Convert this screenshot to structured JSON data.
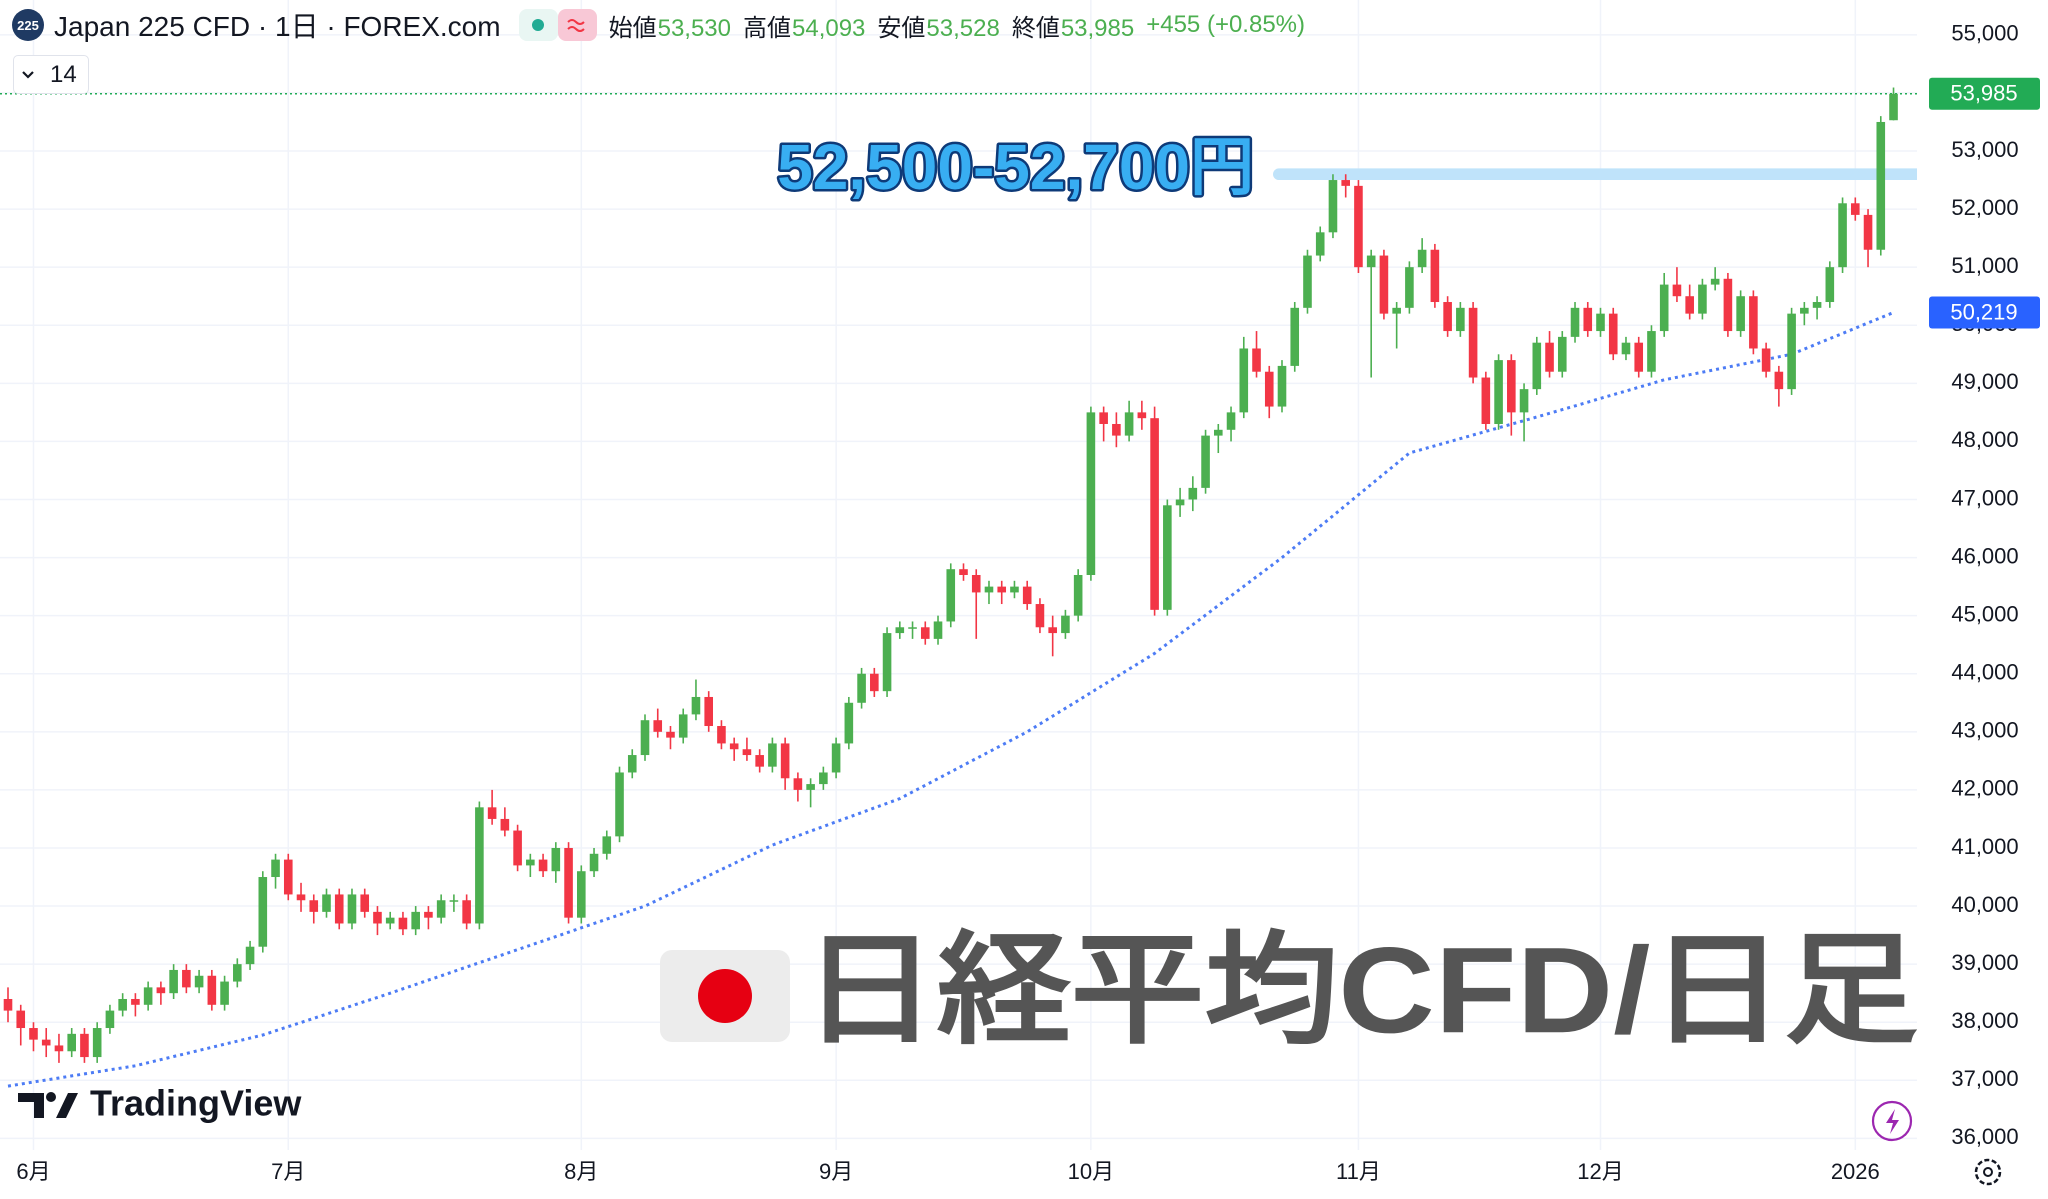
{
  "header": {
    "badge": "225",
    "title": "Japan 225 CFD · 1日 · FOREX.com",
    "ohlc": {
      "labels": [
        "始値",
        "高値",
        "安値",
        "終値"
      ],
      "values": [
        53530,
        54093,
        53528,
        53985
      ],
      "value_labels": [
        "53,530",
        "54,093",
        "53,528",
        "53,985"
      ]
    },
    "change": {
      "value": 455,
      "label": "+455"
    },
    "change_pct": {
      "value": 0.85,
      "label": "(+0.85%)"
    },
    "indicator_count": 14
  },
  "chart_data": {
    "type": "candlestick",
    "up_color": "#4caf50",
    "down_color": "#f23645",
    "grid": true,
    "ylim": [
      35800,
      55600
    ],
    "yticks": [
      {
        "value": 36000,
        "label": "36,000"
      },
      {
        "value": 37000,
        "label": "37,000"
      },
      {
        "value": 38000,
        "label": "38,000"
      },
      {
        "value": 39000,
        "label": "39,000"
      },
      {
        "value": 40000,
        "label": "40,000"
      },
      {
        "value": 41000,
        "label": "41,000"
      },
      {
        "value": 42000,
        "label": "42,000"
      },
      {
        "value": 43000,
        "label": "43,000"
      },
      {
        "value": 44000,
        "label": "44,000"
      },
      {
        "value": 45000,
        "label": "45,000"
      },
      {
        "value": 46000,
        "label": "46,000"
      },
      {
        "value": 47000,
        "label": "47,000"
      },
      {
        "value": 48000,
        "label": "48,000"
      },
      {
        "value": 49000,
        "label": "49,000"
      },
      {
        "value": 50000,
        "label": "50,000"
      },
      {
        "value": 51000,
        "label": "51,000"
      },
      {
        "value": 52000,
        "label": "52,000"
      },
      {
        "value": 53000,
        "label": "53,000"
      },
      {
        "value": 54000,
        "label": "54,000"
      },
      {
        "value": 55000,
        "label": "55,000"
      }
    ],
    "categories": [
      null,
      null,
      "6月",
      null,
      null,
      null,
      null,
      null,
      null,
      null,
      null,
      null,
      null,
      null,
      null,
      null,
      null,
      null,
      null,
      null,
      null,
      null,
      "7月",
      null,
      null,
      null,
      null,
      null,
      null,
      null,
      null,
      null,
      null,
      null,
      null,
      null,
      null,
      null,
      null,
      null,
      null,
      null,
      null,
      null,
      null,
      "8月",
      null,
      null,
      null,
      null,
      null,
      null,
      null,
      null,
      null,
      null,
      null,
      null,
      null,
      null,
      null,
      null,
      null,
      null,
      null,
      "9月",
      null,
      null,
      null,
      null,
      null,
      null,
      null,
      null,
      null,
      null,
      null,
      null,
      null,
      null,
      null,
      null,
      null,
      null,
      null,
      "10月",
      null,
      null,
      null,
      null,
      null,
      null,
      null,
      null,
      null,
      null,
      null,
      null,
      null,
      null,
      null,
      null,
      null,
      null,
      null,
      null,
      "11月",
      null,
      null,
      null,
      null,
      null,
      null,
      null,
      null,
      null,
      null,
      null,
      null,
      null,
      null,
      null,
      null,
      null,
      null,
      "12月",
      null,
      null,
      null,
      null,
      null,
      null,
      null,
      null,
      null,
      null,
      null,
      null,
      null,
      null,
      null,
      null,
      null,
      null,
      null,
      "2026",
      null,
      null,
      null,
      null,
      null
    ],
    "candles": [
      [
        38400,
        38600,
        38000,
        38200
      ],
      [
        38200,
        38300,
        37600,
        37900
      ],
      [
        37900,
        38000,
        37500,
        37700
      ],
      [
        37700,
        37900,
        37400,
        37600
      ],
      [
        37600,
        37800,
        37300,
        37500
      ],
      [
        37500,
        37900,
        37400,
        37800
      ],
      [
        37800,
        37900,
        37300,
        37400
      ],
      [
        37400,
        38000,
        37300,
        37900
      ],
      [
        37900,
        38300,
        37800,
        38200
      ],
      [
        38200,
        38500,
        38100,
        38400
      ],
      [
        38400,
        38500,
        38100,
        38300
      ],
      [
        38300,
        38700,
        38200,
        38600
      ],
      [
        38600,
        38700,
        38300,
        38500
      ],
      [
        38500,
        39000,
        38400,
        38900
      ],
      [
        38900,
        39000,
        38500,
        38600
      ],
      [
        38600,
        38900,
        38500,
        38800
      ],
      [
        38800,
        38900,
        38200,
        38300
      ],
      [
        38300,
        38800,
        38200,
        38700
      ],
      [
        38700,
        39100,
        38600,
        39000
      ],
      [
        39000,
        39400,
        38900,
        39300
      ],
      [
        39300,
        40600,
        39200,
        40500
      ],
      [
        40500,
        40900,
        40300,
        40800
      ],
      [
        40800,
        40900,
        40100,
        40200
      ],
      [
        40200,
        40400,
        39900,
        40100
      ],
      [
        40100,
        40200,
        39700,
        39900
      ],
      [
        39900,
        40300,
        39800,
        40200
      ],
      [
        40200,
        40300,
        39600,
        39700
      ],
      [
        39700,
        40300,
        39600,
        40200
      ],
      [
        40200,
        40300,
        39800,
        39900
      ],
      [
        39900,
        40000,
        39500,
        39700
      ],
      [
        39700,
        39900,
        39600,
        39800
      ],
      [
        39800,
        39900,
        39500,
        39600
      ],
      [
        39600,
        40000,
        39500,
        39900
      ],
      [
        39900,
        40000,
        39600,
        39800
      ],
      [
        39800,
        40200,
        39700,
        40100
      ],
      [
        40100,
        40200,
        39900,
        40100
      ],
      [
        40100,
        40200,
        39600,
        39700
      ],
      [
        39700,
        41800,
        39600,
        41700
      ],
      [
        41700,
        42000,
        41400,
        41500
      ],
      [
        41500,
        41700,
        41200,
        41300
      ],
      [
        41300,
        41400,
        40600,
        40700
      ],
      [
        40700,
        40900,
        40500,
        40800
      ],
      [
        40800,
        40900,
        40500,
        40600
      ],
      [
        40600,
        41100,
        40400,
        41000
      ],
      [
        41000,
        41100,
        39700,
        39800
      ],
      [
        39800,
        40700,
        39700,
        40600
      ],
      [
        40600,
        41000,
        40500,
        40900
      ],
      [
        40900,
        41300,
        40800,
        41200
      ],
      [
        41200,
        42400,
        41100,
        42300
      ],
      [
        42300,
        42700,
        42200,
        42600
      ],
      [
        42600,
        43300,
        42500,
        43200
      ],
      [
        43200,
        43400,
        42900,
        43000
      ],
      [
        43000,
        43100,
        42700,
        42900
      ],
      [
        42900,
        43400,
        42800,
        43300
      ],
      [
        43300,
        43900,
        43200,
        43600
      ],
      [
        43600,
        43700,
        43000,
        43100
      ],
      [
        43100,
        43200,
        42700,
        42800
      ],
      [
        42800,
        42900,
        42500,
        42700
      ],
      [
        42700,
        42900,
        42500,
        42600
      ],
      [
        42600,
        42700,
        42300,
        42400
      ],
      [
        42400,
        42900,
        42300,
        42800
      ],
      [
        42800,
        42900,
        42000,
        42200
      ],
      [
        42200,
        42300,
        41800,
        42000
      ],
      [
        42000,
        42200,
        41700,
        42100
      ],
      [
        42100,
        42400,
        42000,
        42300
      ],
      [
        42300,
        42900,
        42200,
        42800
      ],
      [
        42800,
        43600,
        42700,
        43500
      ],
      [
        43500,
        44100,
        43400,
        44000
      ],
      [
        44000,
        44100,
        43600,
        43700
      ],
      [
        43700,
        44800,
        43600,
        44700
      ],
      [
        44700,
        44900,
        44600,
        44800
      ],
      [
        44800,
        44900,
        44600,
        44800
      ],
      [
        44800,
        44900,
        44500,
        44600
      ],
      [
        44600,
        45000,
        44500,
        44900
      ],
      [
        44900,
        45900,
        44800,
        45800
      ],
      [
        45800,
        45900,
        45600,
        45700
      ],
      [
        45700,
        45800,
        44600,
        45400
      ],
      [
        45400,
        45600,
        45200,
        45500
      ],
      [
        45500,
        45600,
        45200,
        45400
      ],
      [
        45400,
        45600,
        45300,
        45500
      ],
      [
        45500,
        45600,
        45100,
        45200
      ],
      [
        45200,
        45300,
        44700,
        44800
      ],
      [
        44800,
        45000,
        44300,
        44700
      ],
      [
        44700,
        45100,
        44600,
        45000
      ],
      [
        45000,
        45800,
        44900,
        45700
      ],
      [
        45700,
        48600,
        45600,
        48500
      ],
      [
        48500,
        48600,
        48000,
        48300
      ],
      [
        48300,
        48500,
        47900,
        48100
      ],
      [
        48100,
        48700,
        48000,
        48500
      ],
      [
        48500,
        48700,
        48200,
        48400
      ],
      [
        48400,
        48600,
        45000,
        45100
      ],
      [
        45100,
        47000,
        45000,
        46900
      ],
      [
        46900,
        47200,
        46700,
        47000
      ],
      [
        47000,
        47400,
        46800,
        47200
      ],
      [
        47200,
        48200,
        47100,
        48100
      ],
      [
        48100,
        48300,
        47800,
        48200
      ],
      [
        48200,
        48600,
        48000,
        48500
      ],
      [
        48500,
        49800,
        48400,
        49600
      ],
      [
        49600,
        49900,
        49100,
        49200
      ],
      [
        49200,
        49300,
        48400,
        48600
      ],
      [
        48600,
        49400,
        48500,
        49300
      ],
      [
        49300,
        50400,
        49200,
        50300
      ],
      [
        50300,
        51300,
        50200,
        51200
      ],
      [
        51200,
        51700,
        51100,
        51600
      ],
      [
        51600,
        52600,
        51500,
        52500
      ],
      [
        52500,
        52600,
        52200,
        52400
      ],
      [
        52400,
        52500,
        50900,
        51000
      ],
      [
        51000,
        51300,
        49100,
        51200
      ],
      [
        51200,
        51300,
        50100,
        50200
      ],
      [
        50200,
        50400,
        49600,
        50300
      ],
      [
        50300,
        51100,
        50200,
        51000
      ],
      [
        51000,
        51500,
        50900,
        51300
      ],
      [
        51300,
        51400,
        50300,
        50400
      ],
      [
        50400,
        50500,
        49800,
        49900
      ],
      [
        49900,
        50400,
        49800,
        50300
      ],
      [
        50300,
        50400,
        49000,
        49100
      ],
      [
        49100,
        49200,
        48200,
        48300
      ],
      [
        48300,
        49500,
        48200,
        49400
      ],
      [
        49400,
        49500,
        48100,
        48500
      ],
      [
        48500,
        49000,
        48000,
        48900
      ],
      [
        48900,
        49800,
        48800,
        49700
      ],
      [
        49700,
        49900,
        49100,
        49200
      ],
      [
        49200,
        49900,
        49100,
        49800
      ],
      [
        49800,
        50400,
        49700,
        50300
      ],
      [
        50300,
        50400,
        49800,
        49900
      ],
      [
        49900,
        50300,
        49800,
        50200
      ],
      [
        50200,
        50300,
        49400,
        49500
      ],
      [
        49500,
        49800,
        49400,
        49700
      ],
      [
        49700,
        49800,
        49100,
        49200
      ],
      [
        49200,
        50000,
        49100,
        49900
      ],
      [
        49900,
        50900,
        49800,
        50700
      ],
      [
        50700,
        51000,
        50400,
        50500
      ],
      [
        50500,
        50700,
        50100,
        50200
      ],
      [
        50200,
        50800,
        50100,
        50700
      ],
      [
        50700,
        51000,
        50600,
        50800
      ],
      [
        50800,
        50900,
        49800,
        49900
      ],
      [
        49900,
        50600,
        49800,
        50500
      ],
      [
        50500,
        50600,
        49500,
        49600
      ],
      [
        49600,
        49700,
        49100,
        49200
      ],
      [
        49200,
        49300,
        48600,
        48900
      ],
      [
        48900,
        50300,
        48800,
        50200
      ],
      [
        50200,
        50400,
        50000,
        50300
      ],
      [
        50300,
        50500,
        50100,
        50400
      ],
      [
        50400,
        51100,
        50300,
        51000
      ],
      [
        51000,
        52200,
        50900,
        52100
      ],
      [
        52100,
        52200,
        51800,
        51900
      ],
      [
        51900,
        52000,
        51000,
        51300
      ],
      [
        51300,
        53600,
        51200,
        53500
      ],
      [
        53530,
        54093,
        53528,
        53985
      ]
    ],
    "ma": {
      "color": "#4d7cf5",
      "values": [
        36900,
        36935,
        36970,
        37005,
        37040,
        37075,
        37110,
        37145,
        37180,
        37215,
        37250,
        37303,
        37356,
        37409,
        37462,
        37515,
        37568,
        37621,
        37674,
        37727,
        37780,
        37852,
        37924,
        37996,
        38068,
        38140,
        38212,
        38284,
        38356,
        38428,
        38500,
        38575,
        38650,
        38725,
        38800,
        38875,
        38950,
        39025,
        39100,
        39175,
        39250,
        39325,
        39400,
        39475,
        39550,
        39625,
        39700,
        39775,
        39850,
        39925,
        40000,
        40105,
        40210,
        40315,
        40420,
        40525,
        40630,
        40735,
        40840,
        40945,
        41050,
        41130,
        41210,
        41290,
        41370,
        41450,
        41530,
        41610,
        41690,
        41770,
        41850,
        41965,
        42080,
        42195,
        42310,
        42425,
        42540,
        42655,
        42770,
        42885,
        43000,
        43135,
        43270,
        43405,
        43540,
        43675,
        43810,
        43945,
        44080,
        44215,
        44350,
        44515,
        44680,
        44845,
        45010,
        45175,
        45340,
        45505,
        45670,
        45835,
        46000,
        46180,
        46360,
        46540,
        46720,
        46900,
        47080,
        47260,
        47440,
        47620,
        47800,
        47862,
        47924,
        47986,
        48048,
        48110,
        48172,
        48234,
        48296,
        48358,
        48420,
        48484,
        48548,
        48612,
        48676,
        48740,
        48804,
        48868,
        48932,
        48996,
        49060,
        49104,
        49148,
        49192,
        49236,
        49280,
        49324,
        49368,
        49412,
        49456,
        49500,
        49590,
        49680,
        49770,
        49860,
        49950,
        50040,
        50130,
        50219
      ],
      "last": {
        "value": 50219,
        "label": "50,219"
      }
    },
    "last_price": {
      "value": 53985,
      "label": "53,985",
      "color": "#22ab55"
    },
    "band": {
      "label": "52,500-52,700円",
      "range": [
        52500,
        52700
      ],
      "color": "#bfe3fa"
    },
    "overlay_title": "日経平均CFD/日足",
    "watermark": "TradingView"
  }
}
